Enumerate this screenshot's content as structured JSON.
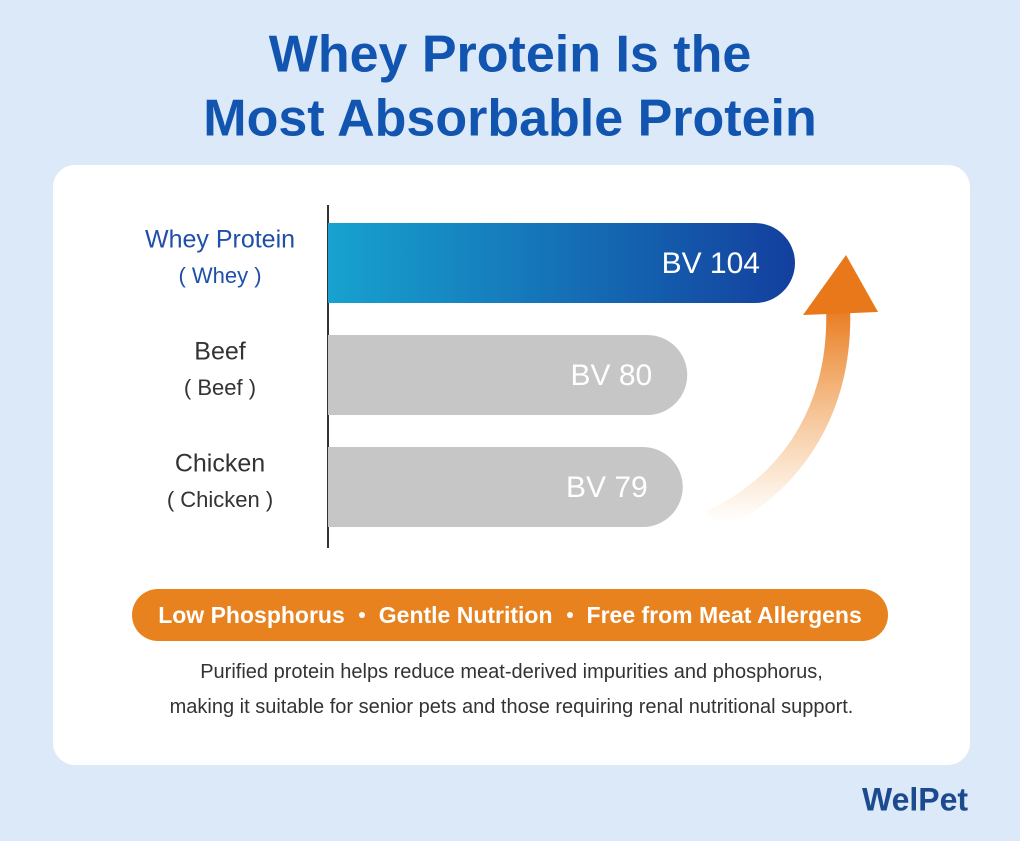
{
  "title_lines": [
    "Whey Protein Is the",
    "Most Absorbable Protein"
  ],
  "chart_data": {
    "type": "bar",
    "orientation": "horizontal",
    "categories": [
      "Whey Protein",
      "Beef",
      "Chicken"
    ],
    "category_notes": [
      "( Whey )",
      "( Beef )",
      "( Chicken )"
    ],
    "values": [
      104,
      80,
      79
    ],
    "value_labels": [
      "BV 104",
      "BV 80",
      "BV 79"
    ],
    "colors": [
      "#1a4fb0",
      "#c6c6c6",
      "#c6c6c6"
    ]
  },
  "highlights": [
    "Low Phosphorus",
    "Gentle Nutrition",
    "Free from Meat Allergens"
  ],
  "description": [
    "Purified protein helps reduce meat-derived impurities and phosphorus,",
    "making it suitable for senior pets and those requiring renal nutritional support."
  ],
  "brand": "WelPet"
}
